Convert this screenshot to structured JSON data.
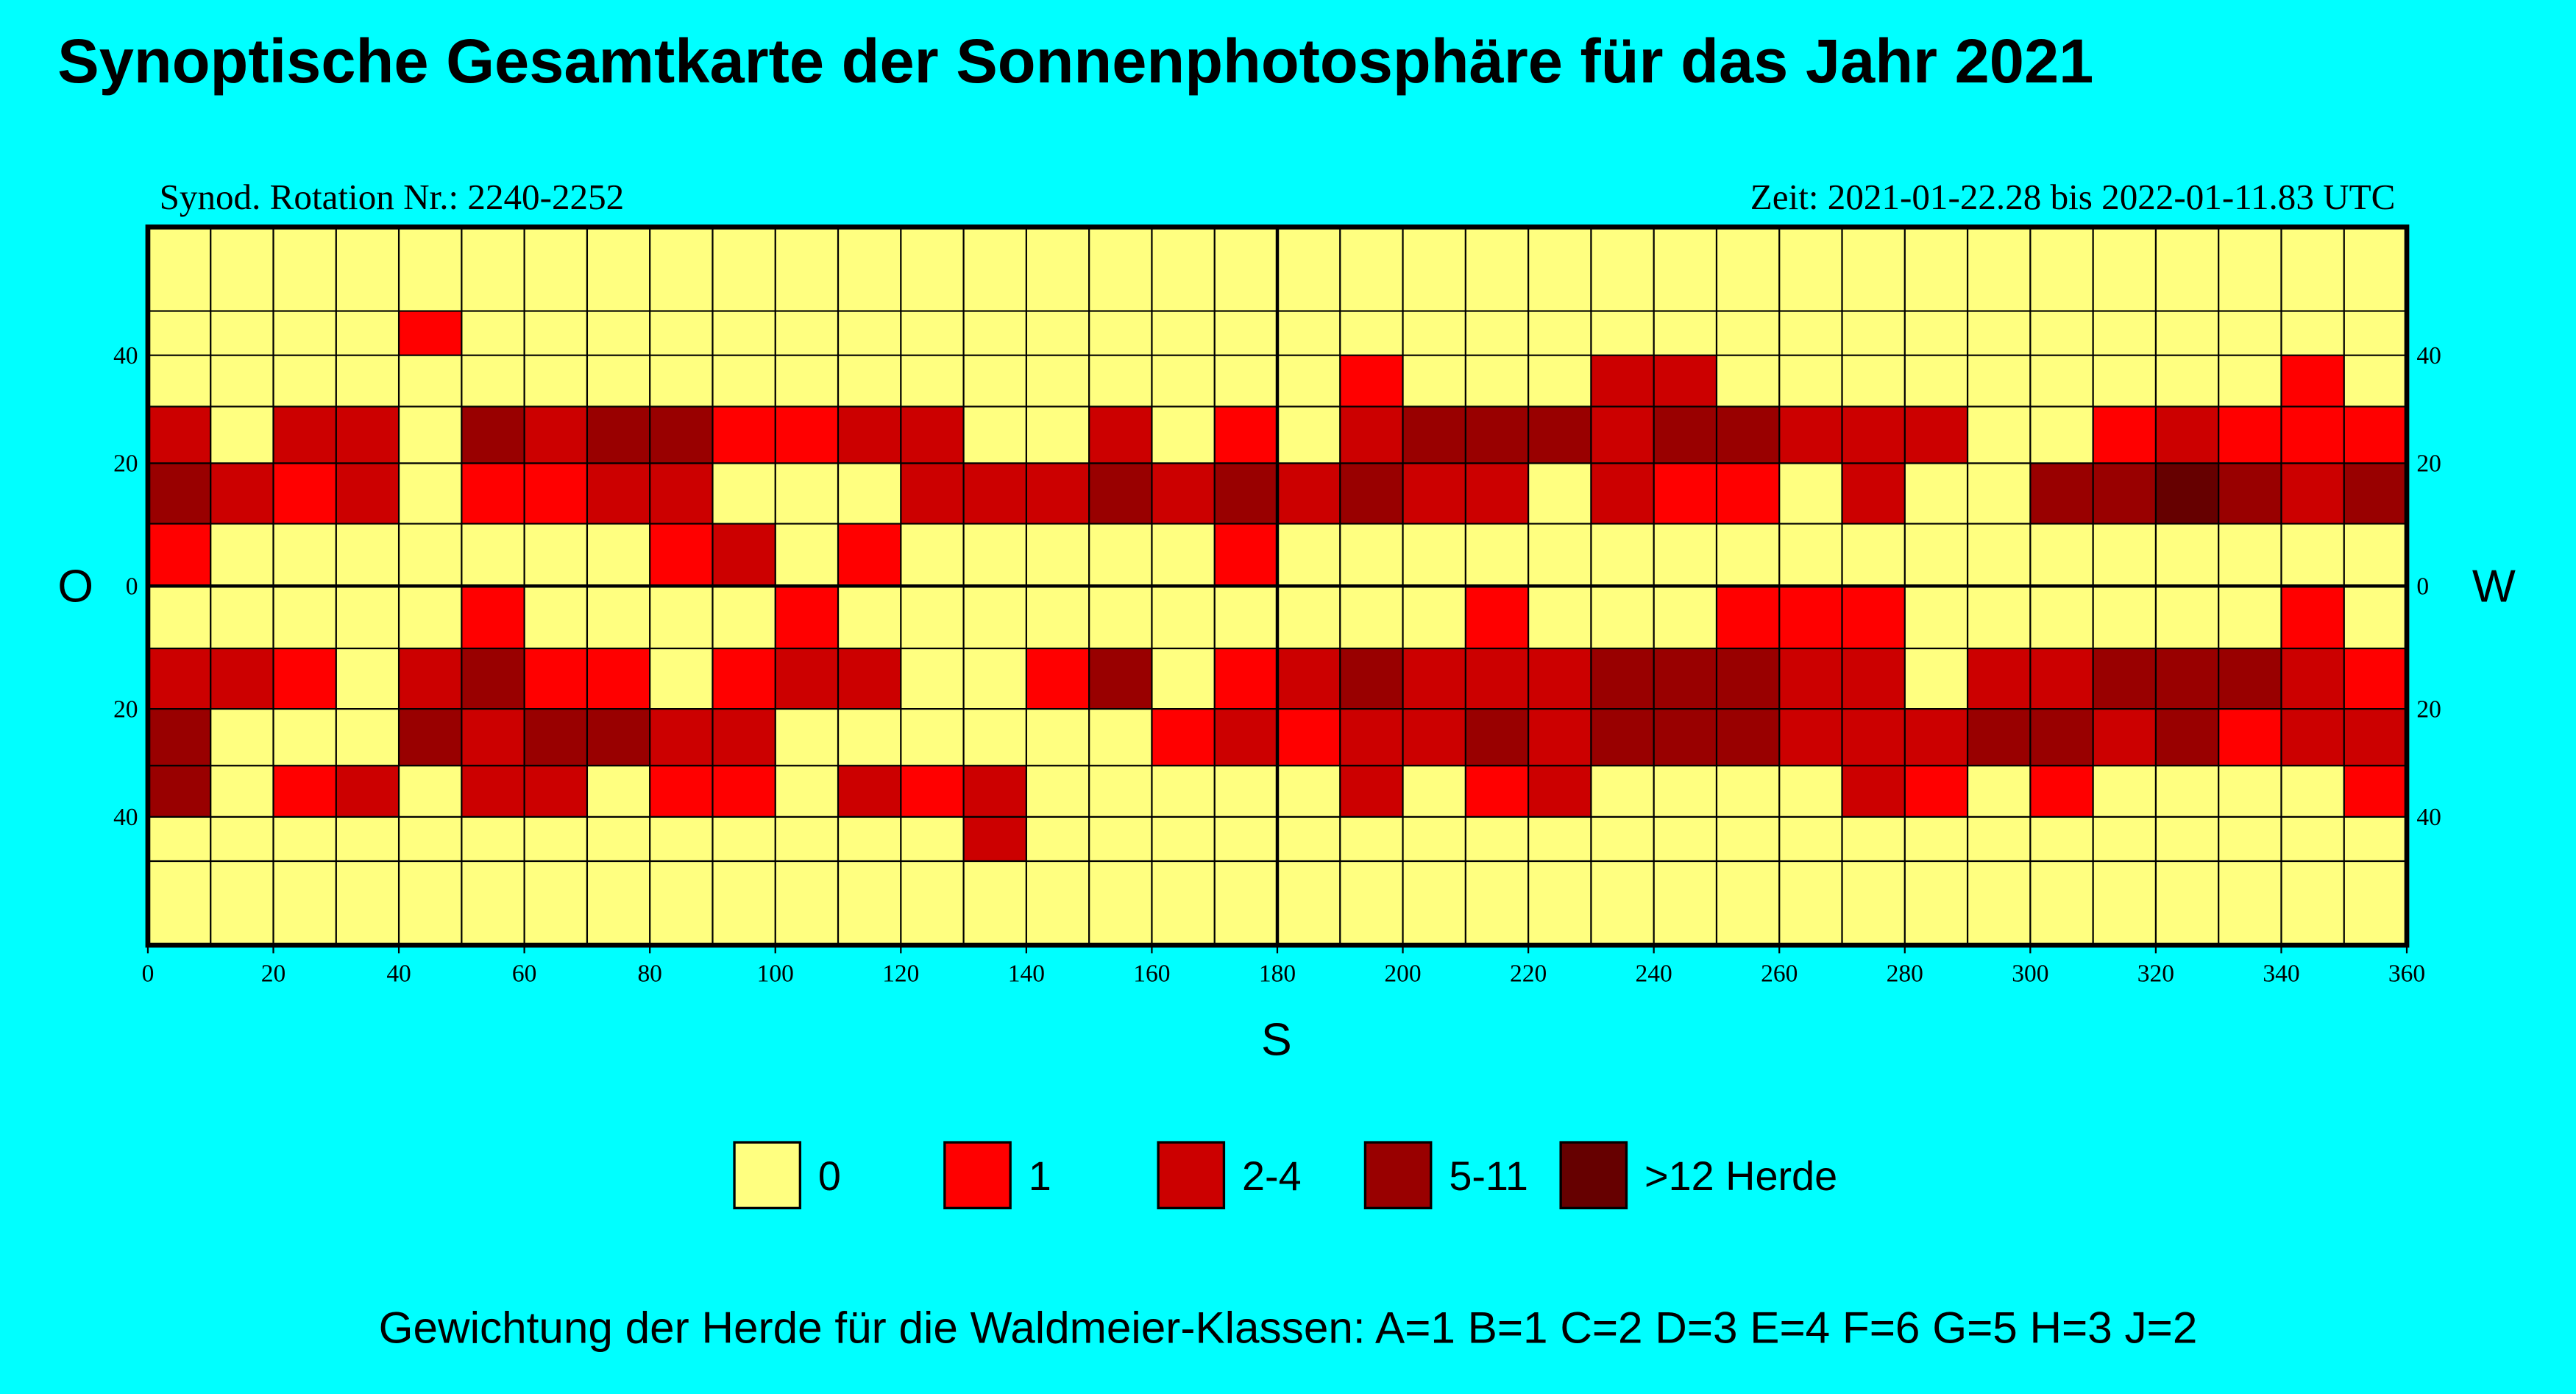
{
  "chart_data": {
    "type": "heatmap",
    "title": "Synoptische Gesamtkarte der Sonnenphotosphäre für das Jahr 2021",
    "subtitle_left": "Synod. Rotation Nr.: 2240-2252",
    "subtitle_right": "Zeit: 2021-01-22.28 bis 2022-01-11.83 UTC",
    "label_left": "O",
    "label_right": "W",
    "x_label": "S",
    "footnote": "Gewichtung der Herde für die Waldmeier-Klassen: A=1 B=1 C=2 D=3 E=4 F=6 G=5 H=3 J=2",
    "xlim": [
      0,
      360
    ],
    "xticks": [
      0,
      20,
      40,
      60,
      80,
      100,
      120,
      140,
      160,
      180,
      200,
      220,
      240,
      260,
      280,
      300,
      320,
      340,
      360
    ],
    "x_edges": [
      0,
      10,
      20,
      30,
      40,
      50,
      60,
      70,
      80,
      90,
      100,
      110,
      120,
      130,
      140,
      150,
      160,
      170,
      180,
      190,
      200,
      210,
      220,
      230,
      240,
      250,
      260,
      270,
      280,
      290,
      300,
      310,
      320,
      330,
      340,
      350,
      360
    ],
    "ylim": [
      -90,
      90
    ],
    "y_scale": "sine",
    "yticks": [
      40,
      20,
      0,
      {
        "value": -20,
        "label": "20"
      },
      {
        "value": -40,
        "label": "40"
      }
    ],
    "y_edges": [
      90,
      50,
      40,
      30,
      20,
      10,
      0,
      -10,
      -20,
      -30,
      -40,
      -50,
      -90
    ],
    "classes": [
      {
        "label": "0",
        "color": "#ffff80"
      },
      {
        "label": "1",
        "color": "#ff0000"
      },
      {
        "label": "2-4",
        "color": "#cc0000"
      },
      {
        "label": "5-11",
        "color": "#990000"
      },
      {
        "label": ">12 Herde",
        "color": "#660000"
      }
    ],
    "values": [
      [
        0,
        0,
        0,
        0,
        0,
        0,
        0,
        0,
        0,
        0,
        0,
        0,
        0,
        0,
        0,
        0,
        0,
        0,
        0,
        0,
        0,
        0,
        0,
        0,
        0,
        0,
        0,
        0,
        0,
        0,
        0,
        0,
        0,
        0,
        0,
        0
      ],
      [
        0,
        0,
        0,
        0,
        1,
        0,
        0,
        0,
        0,
        0,
        0,
        0,
        0,
        0,
        0,
        0,
        0,
        0,
        0,
        0,
        0,
        0,
        0,
        0,
        0,
        0,
        0,
        0,
        0,
        0,
        0,
        0,
        0,
        0,
        0,
        0
      ],
      [
        0,
        0,
        0,
        0,
        0,
        0,
        0,
        0,
        0,
        0,
        0,
        0,
        0,
        0,
        0,
        0,
        0,
        0,
        0,
        1,
        0,
        0,
        0,
        2,
        2,
        0,
        0,
        0,
        0,
        0,
        0,
        0,
        0,
        0,
        1,
        0
      ],
      [
        2,
        0,
        2,
        2,
        0,
        3,
        2,
        3,
        3,
        1,
        1,
        2,
        2,
        0,
        0,
        2,
        0,
        1,
        0,
        2,
        3,
        3,
        3,
        2,
        3,
        3,
        2,
        2,
        2,
        0,
        0,
        1,
        2,
        1,
        1,
        1
      ],
      [
        3,
        2,
        1,
        2,
        0,
        1,
        1,
        2,
        2,
        0,
        0,
        0,
        2,
        2,
        2,
        3,
        2,
        3,
        2,
        3,
        2,
        2,
        0,
        2,
        1,
        1,
        0,
        2,
        0,
        0,
        3,
        3,
        4,
        3,
        2,
        3
      ],
      [
        1,
        0,
        0,
        0,
        0,
        0,
        0,
        0,
        1,
        2,
        0,
        1,
        0,
        0,
        0,
        0,
        0,
        1,
        0,
        0,
        0,
        0,
        0,
        0,
        0,
        0,
        0,
        0,
        0,
        0,
        0,
        0,
        0,
        0,
        0,
        0
      ],
      [
        0,
        0,
        0,
        0,
        0,
        1,
        0,
        0,
        0,
        0,
        1,
        0,
        0,
        0,
        0,
        0,
        0,
        0,
        0,
        0,
        0,
        1,
        0,
        0,
        0,
        1,
        1,
        1,
        0,
        0,
        0,
        0,
        0,
        0,
        1,
        0
      ],
      [
        2,
        2,
        1,
        0,
        2,
        3,
        1,
        1,
        0,
        1,
        2,
        2,
        0,
        0,
        1,
        3,
        0,
        1,
        2,
        3,
        2,
        2,
        2,
        3,
        3,
        3,
        2,
        2,
        0,
        2,
        2,
        3,
        3,
        3,
        2,
        1
      ],
      [
        3,
        0,
        0,
        0,
        3,
        2,
        3,
        3,
        2,
        2,
        0,
        0,
        0,
        0,
        0,
        0,
        1,
        2,
        1,
        2,
        2,
        3,
        2,
        3,
        3,
        3,
        2,
        2,
        2,
        3,
        3,
        2,
        3,
        1,
        2,
        2
      ],
      [
        3,
        0,
        1,
        2,
        0,
        2,
        2,
        0,
        1,
        1,
        0,
        2,
        1,
        2,
        0,
        0,
        0,
        0,
        0,
        2,
        0,
        1,
        2,
        0,
        0,
        0,
        0,
        2,
        1,
        0,
        1,
        0,
        0,
        0,
        0,
        1
      ],
      [
        0,
        0,
        0,
        0,
        0,
        0,
        0,
        0,
        0,
        0,
        0,
        0,
        0,
        2,
        0,
        0,
        0,
        0,
        0,
        0,
        0,
        0,
        0,
        0,
        0,
        0,
        0,
        0,
        0,
        0,
        0,
        0,
        0,
        0,
        0,
        0
      ],
      [
        0,
        0,
        0,
        0,
        0,
        0,
        0,
        0,
        0,
        0,
        0,
        0,
        0,
        0,
        0,
        0,
        0,
        0,
        0,
        0,
        0,
        0,
        0,
        0,
        0,
        0,
        0,
        0,
        0,
        0,
        0,
        0,
        0,
        0,
        0,
        0
      ]
    ]
  }
}
